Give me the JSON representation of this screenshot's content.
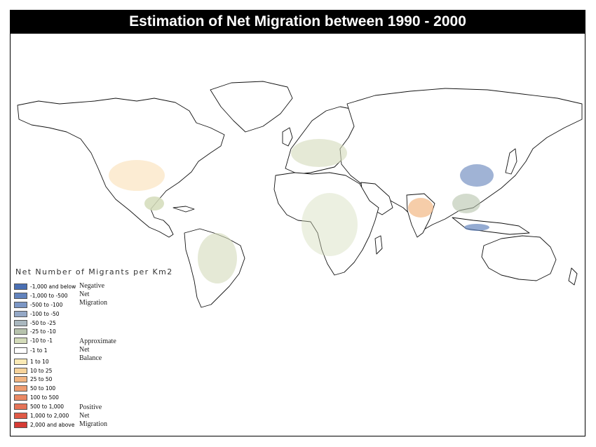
{
  "title": "Estimation of Net Migration between 1990 - 2000",
  "legend": {
    "title": "Net Number of Migrants per Km2",
    "items": [
      {
        "label": "-1,000 and below",
        "color": "#4a6fb3"
      },
      {
        "label": "-1,000 to -500",
        "color": "#6283bd"
      },
      {
        "label": "-500 to -100",
        "color": "#7c97c5"
      },
      {
        "label": "-100 to -50",
        "color": "#94a8c6"
      },
      {
        "label": "-50 to -25",
        "color": "#a9b7bf"
      },
      {
        "label": "-25 to -10",
        "color": "#b7c3ad"
      },
      {
        "label": "-10 to -1",
        "color": "#d4dcba"
      },
      {
        "label": "-1 to 1",
        "color": "#ffffff"
      },
      {
        "label": "1 to 10",
        "color": "#fbeab5"
      },
      {
        "label": "10 to 25",
        "color": "#f7d39a"
      },
      {
        "label": "25 to 50",
        "color": "#f2b581"
      },
      {
        "label": "50 to 100",
        "color": "#ee9c70"
      },
      {
        "label": "100 to 500",
        "color": "#ea8863"
      },
      {
        "label": "500 to 1,000",
        "color": "#e67458"
      },
      {
        "label": "1,000 to 2,000",
        "color": "#e05a47"
      },
      {
        "label": "2,000 and above",
        "color": "#d63b35"
      }
    ],
    "groups": [
      {
        "lines": [
          "Negative",
          "Net",
          "Migration"
        ]
      },
      {
        "lines": [
          "Approximate",
          "Net",
          "Balance"
        ]
      },
      {
        "lines": [
          "Positive",
          "Net",
          "Migration"
        ]
      }
    ]
  }
}
